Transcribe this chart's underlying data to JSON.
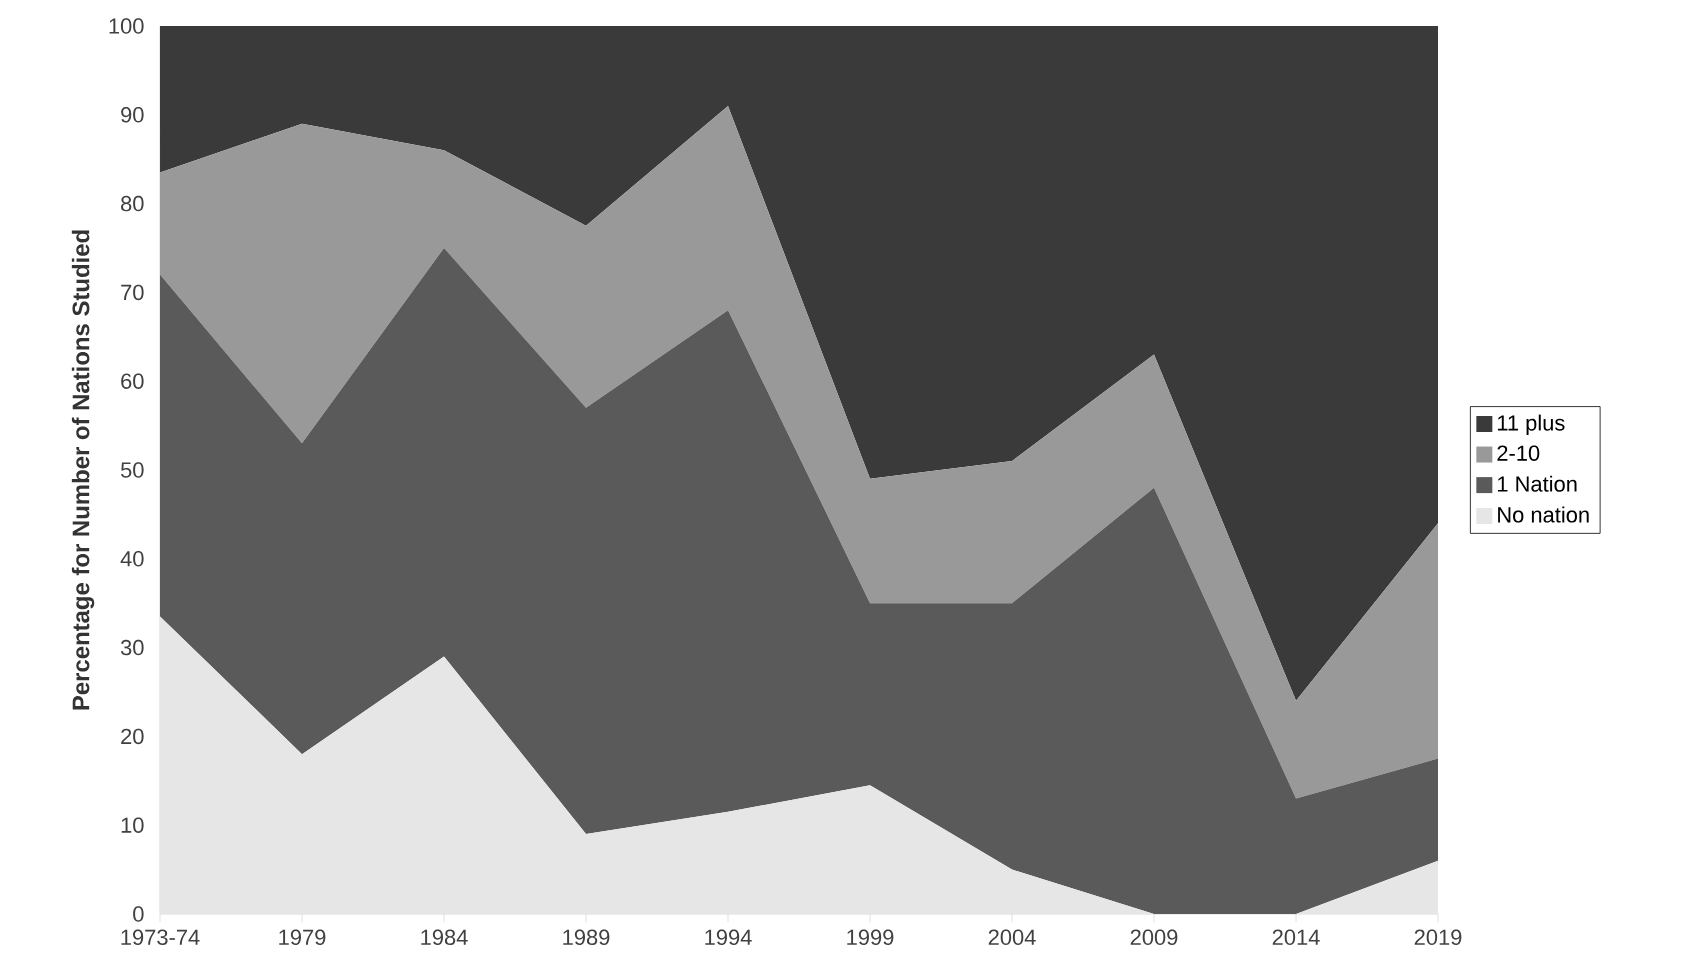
{
  "chart_data": {
    "type": "area",
    "stacked": true,
    "ylabel": "Percentage for Number of Nations Studied",
    "categories": [
      "1973-74",
      "1979",
      "1984",
      "1989",
      "1994",
      "1999",
      "2004",
      "2009",
      "2014",
      "2019"
    ],
    "ylim": [
      0,
      100
    ],
    "yticks": [
      0,
      10,
      20,
      30,
      40,
      50,
      60,
      70,
      80,
      90,
      100
    ],
    "legend": "right",
    "grid": false,
    "series": [
      {
        "name": "No nation",
        "color": "#e6e6e6",
        "values": [
          33.5,
          18,
          29,
          9,
          11.5,
          14.5,
          5,
          0,
          0,
          6
        ]
      },
      {
        "name": "1 Nation",
        "color": "#5a5a5a",
        "values": [
          38.5,
          35,
          46,
          48,
          56.5,
          20.5,
          30,
          48,
          13,
          11.5
        ]
      },
      {
        "name": "2-10",
        "color": "#999999",
        "values": [
          11.5,
          36,
          11,
          20.5,
          23,
          14,
          16,
          15,
          11,
          26.5
        ]
      },
      {
        "name": "11 plus",
        "color": "#3a3a3a",
        "values": [
          16.5,
          11,
          14,
          22.5,
          9,
          51,
          49,
          37,
          76,
          56
        ]
      }
    ]
  }
}
